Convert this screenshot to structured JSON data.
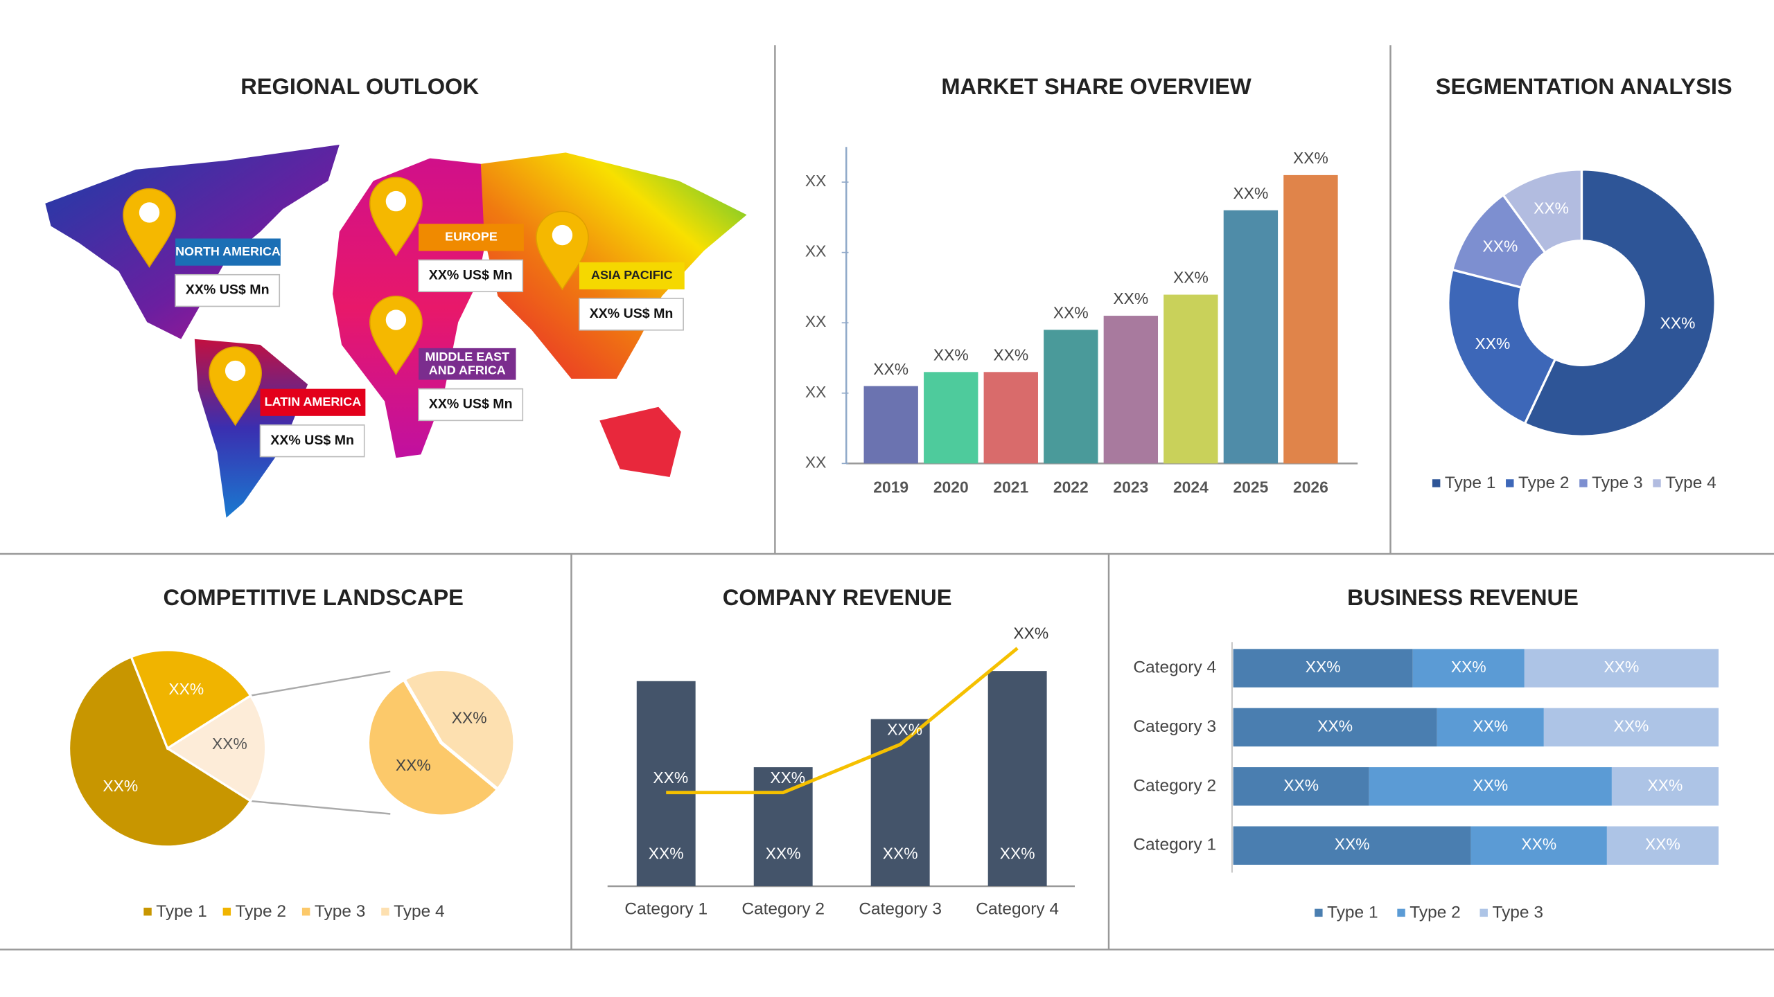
{
  "chart_data": [
    {
      "type": "map",
      "title": "REGIONAL OUTLOOK",
      "regions": [
        {
          "name": "NORTH AMERICA",
          "value_label": "XX% US$ Mn",
          "color": "#1b6fb5"
        },
        {
          "name": "EUROPE",
          "value_label": "XX% US$ Mn",
          "color": "#f08a00"
        },
        {
          "name": "ASIA PACIFIC",
          "value_label": "XX% US$ Mn",
          "color": "#f5d800"
        },
        {
          "name": "MIDDLE EAST\nAND AFRICA",
          "value_label": "XX% US$ Mn",
          "color": "#7b2d8e"
        },
        {
          "name": "LATIN AMERICA",
          "value_label": "XX% US$ Mn",
          "color": "#e3001b"
        }
      ]
    },
    {
      "type": "bar",
      "title": "MARKET SHARE OVERVIEW",
      "categories": [
        "2019",
        "2020",
        "2021",
        "2022",
        "2023",
        "2024",
        "2025",
        "2026"
      ],
      "values": [
        1.1,
        1.3,
        1.3,
        1.9,
        2.1,
        2.4,
        3.6,
        4.1
      ],
      "value_labels": [
        "XX%",
        "XX%",
        "XX%",
        "XX%",
        "XX%",
        "XX%",
        "XX%",
        "XX%"
      ],
      "colors": [
        "#6b73b0",
        "#4ecb9c",
        "#d96b6b",
        "#4a9a9a",
        "#a87a9e",
        "#c9d15a",
        "#4f8ca8",
        "#e0844a"
      ],
      "ylim": [
        0,
        4.5
      ],
      "yticks": [
        {
          "value": 0,
          "label": "XX"
        },
        {
          "value": 1,
          "label": "XX"
        },
        {
          "value": 2,
          "label": "XX"
        },
        {
          "value": 3,
          "label": "XX"
        },
        {
          "value": 4,
          "label": "XX"
        }
      ]
    },
    {
      "type": "donut",
      "title": "SEGMENTATION ANALYSIS",
      "categories": [
        "Type 1",
        "Type 2",
        "Type 3",
        "Type 4"
      ],
      "values": [
        57,
        22,
        11,
        10
      ],
      "value_labels": [
        "XX%",
        "XX%",
        "XX%",
        "XX%"
      ],
      "colors": [
        "#2e5597",
        "#3d67b8",
        "#7d8fd0",
        "#b2bce0"
      ],
      "legend": "bottom"
    },
    {
      "type": "pie",
      "title": "COMPETITIVE LANDSCAPE",
      "categories": [
        "Type 1",
        "Type 2",
        "Type 3",
        "Type 4"
      ],
      "values": [
        60,
        22,
        10,
        8
      ],
      "value_labels": [
        "XX%",
        "XX%",
        "XX%",
        "XX%"
      ],
      "other_label": "XX%",
      "colors": [
        "#c89600",
        "#f0b400",
        "#fcc96a",
        "#fde0b0"
      ],
      "legend": "bottom"
    },
    {
      "type": "combo",
      "title": "COMPANY REVENUE",
      "categories": [
        "Category 1",
        "Category 2",
        "Category 3",
        "Category 4"
      ],
      "ylim": [
        0,
        10
      ],
      "series": [
        {
          "type": "bar",
          "color": "#44546a",
          "values": [
            8.1,
            4.7,
            6.6,
            8.5
          ],
          "value_labels": [
            "XX%",
            "XX%",
            "XX%",
            "XX%"
          ]
        },
        {
          "type": "line",
          "color": "#f5c000",
          "values": [
            3.7,
            3.7,
            5.6,
            9.4
          ],
          "value_labels": [
            "XX%",
            "XX%",
            "XX%",
            "XX%"
          ]
        }
      ]
    },
    {
      "type": "barh",
      "title": "BUSINESS REVENUE",
      "categories": [
        "Category 1",
        "Category 2",
        "Category 3",
        "Category 4"
      ],
      "xlim": [
        0,
        100
      ],
      "series": [
        {
          "name": "Type 1",
          "color": "#4a7eb0",
          "values": [
            49,
            28,
            42,
            37
          ],
          "value_labels": [
            "XX%",
            "XX%",
            "XX%",
            "XX%"
          ]
        },
        {
          "name": "Type 2",
          "color": "#5b9bd5",
          "values": [
            28,
            50,
            22,
            23
          ],
          "value_labels": [
            "XX%",
            "XX%",
            "XX%",
            "XX%"
          ]
        },
        {
          "name": "Type 3",
          "color": "#adc4e6",
          "values": [
            23,
            22,
            36,
            40
          ],
          "value_labels": [
            "XX%",
            "XX%",
            "XX%",
            "XX%"
          ]
        }
      ],
      "legend": "bottom"
    }
  ]
}
